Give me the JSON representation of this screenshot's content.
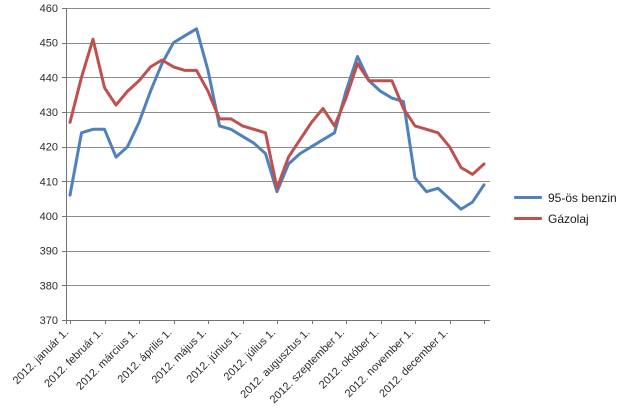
{
  "chart_data": {
    "type": "line",
    "title": "",
    "x_tick_labels": [
      "2012. január 1.",
      "2012. február 1.",
      "2012. március 1.",
      "2012. április 1.",
      "2012. május 1.",
      "2012. június 1.",
      "2012. július 1.",
      "2012. augusztus 1.",
      "2012. szeptember 1.",
      "2012. október 1.",
      "2012. november 1.",
      "2012. december 1."
    ],
    "points_per_month": 3,
    "y_ticks": [
      370,
      380,
      390,
      400,
      410,
      420,
      430,
      440,
      450,
      460
    ],
    "ylim": [
      370,
      460
    ],
    "grid": true,
    "legend_position": "right",
    "series": [
      {
        "name": "95-ös benzin",
        "color": "#4F81BD",
        "values": [
          406,
          424,
          425,
          425,
          417,
          420,
          427,
          436,
          444,
          450,
          452,
          454,
          442,
          426,
          425,
          423,
          421,
          418,
          407,
          415,
          418,
          420,
          422,
          424,
          436,
          446,
          439,
          436,
          434,
          433,
          411,
          407,
          408,
          405,
          402,
          404,
          409
        ]
      },
      {
        "name": "Gázolaj",
        "color": "#C0504D",
        "values": [
          427,
          440,
          451,
          437,
          432,
          436,
          439,
          443,
          445,
          443,
          442,
          442,
          436,
          428,
          428,
          426,
          425,
          424,
          408,
          417,
          422,
          427,
          431,
          426,
          434,
          444,
          439,
          439,
          439,
          431,
          426,
          425,
          424,
          420,
          414,
          412,
          415
        ]
      }
    ]
  },
  "colors": {
    "background": "#FFFFFF",
    "grid": "#8C8C8C",
    "axis": "#737373",
    "tick_label": "#2B2B2B"
  }
}
